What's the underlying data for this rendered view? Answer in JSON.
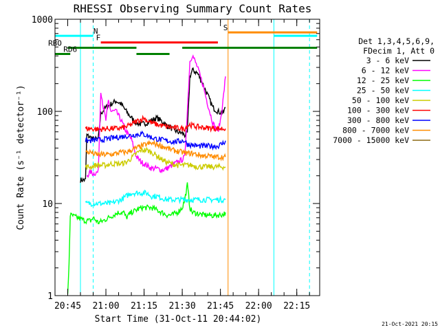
{
  "chart_data": {
    "type": "line",
    "title": "RHESSI Observing Summary Count Rates",
    "xlabel": "Start Time (31-Oct-11 20:44:02)",
    "ylabel": "Count Rate (s⁻¹ detector⁻¹)",
    "y_scale": "log",
    "ylim": [
      1,
      1000
    ],
    "xlim_minutes_after_2044": [
      -4,
      100
    ],
    "x_ticks": [
      {
        "label": "20:45",
        "t": 1
      },
      {
        "label": "21:00",
        "t": 16
      },
      {
        "label": "21:15",
        "t": 31
      },
      {
        "label": "21:30",
        "t": 46
      },
      {
        "label": "21:45",
        "t": 61
      },
      {
        "label": "22:00",
        "t": 76
      },
      {
        "label": "22:15",
        "t": 91
      }
    ],
    "y_ticks": [
      {
        "label": "1",
        "v": 1
      },
      {
        "label": "10",
        "v": 10
      },
      {
        "label": "100",
        "v": 100
      },
      {
        "label": "1000",
        "v": 1000
      }
    ],
    "legend_header": [
      "Det 1,3,4,5,6,9,",
      "FDecim 1, Att 0"
    ],
    "series": [
      {
        "name": "3 - 6 keV",
        "color": "#000000",
        "points": [
          [
            6,
            18
          ],
          [
            8,
            18
          ],
          [
            8.5,
            55
          ],
          [
            10,
            52
          ],
          [
            11,
            50
          ],
          [
            13,
            50
          ],
          [
            14,
            95
          ],
          [
            16,
            110
          ],
          [
            18,
            120
          ],
          [
            20,
            130
          ],
          [
            22,
            120
          ],
          [
            24,
            100
          ],
          [
            26,
            85
          ],
          [
            28,
            75
          ],
          [
            30,
            72
          ],
          [
            32,
            75
          ],
          [
            34,
            80
          ],
          [
            36,
            85
          ],
          [
            38,
            78
          ],
          [
            40,
            70
          ],
          [
            42,
            65
          ],
          [
            44,
            60
          ],
          [
            46,
            58
          ],
          [
            47,
            55
          ],
          [
            48,
            58
          ],
          [
            49,
            240
          ],
          [
            50,
            280
          ],
          [
            52,
            260
          ],
          [
            54,
            200
          ],
          [
            56,
            150
          ],
          [
            58,
            110
          ],
          [
            60,
            100
          ],
          [
            62,
            95
          ],
          [
            63,
            110
          ]
        ]
      },
      {
        "name": "6 - 12 keV",
        "color": "#ff00ff",
        "points": [
          [
            8.5,
            20
          ],
          [
            10,
            22
          ],
          [
            11,
            21
          ],
          [
            13,
            22
          ],
          [
            14,
            170
          ],
          [
            15,
            110
          ],
          [
            16,
            80
          ],
          [
            17,
            130
          ],
          [
            18,
            100
          ],
          [
            20,
            100
          ],
          [
            22,
            80
          ],
          [
            24,
            60
          ],
          [
            26,
            50
          ],
          [
            27,
            40
          ],
          [
            28,
            32
          ],
          [
            30,
            28
          ],
          [
            32,
            26
          ],
          [
            34,
            24
          ],
          [
            36,
            24
          ],
          [
            38,
            23
          ],
          [
            40,
            24
          ],
          [
            42,
            26
          ],
          [
            44,
            28
          ],
          [
            46,
            30
          ],
          [
            47,
            32
          ],
          [
            48,
            100
          ],
          [
            49,
            350
          ],
          [
            50,
            410
          ],
          [
            52,
            300
          ],
          [
            54,
            200
          ],
          [
            56,
            120
          ],
          [
            58,
            75
          ],
          [
            60,
            60
          ],
          [
            61,
            80
          ],
          [
            62,
            130
          ],
          [
            63,
            240
          ]
        ]
      },
      {
        "name": "12 - 25 keV",
        "color": "#00ff00",
        "points": [
          [
            1,
            1
          ],
          [
            1.5,
            2.2
          ],
          [
            2,
            7.5
          ],
          [
            8,
            6.5
          ],
          [
            10,
            6.5
          ],
          [
            11,
            7
          ],
          [
            13,
            6.2
          ],
          [
            15,
            6.5
          ],
          [
            17,
            7
          ],
          [
            19,
            7.5
          ],
          [
            21,
            8
          ],
          [
            23,
            8
          ],
          [
            24,
            7
          ],
          [
            26,
            8
          ],
          [
            28,
            8.5
          ],
          [
            30,
            9
          ],
          [
            32,
            9
          ],
          [
            34,
            9
          ],
          [
            36,
            8.5
          ],
          [
            38,
            8
          ],
          [
            40,
            7.5
          ],
          [
            42,
            7.5
          ],
          [
            44,
            8
          ],
          [
            46,
            9
          ],
          [
            47,
            11
          ],
          [
            48,
            16
          ],
          [
            49,
            9
          ],
          [
            50,
            8
          ],
          [
            52,
            7.8
          ],
          [
            54,
            7.5
          ],
          [
            56,
            7.5
          ],
          [
            58,
            7.4
          ],
          [
            60,
            7.5
          ],
          [
            62,
            7.6
          ],
          [
            63,
            8
          ]
        ]
      },
      {
        "name": "25 - 50 keV",
        "color": "#00ffff",
        "points": [
          [
            8,
            10
          ],
          [
            10,
            10
          ],
          [
            12,
            10
          ],
          [
            14,
            10
          ],
          [
            16,
            10
          ],
          [
            18,
            10
          ],
          [
            20,
            10.5
          ],
          [
            22,
            11
          ],
          [
            24,
            12
          ],
          [
            26,
            13
          ],
          [
            28,
            13
          ],
          [
            30,
            13
          ],
          [
            32,
            13
          ],
          [
            34,
            12
          ],
          [
            36,
            12
          ],
          [
            38,
            11.5
          ],
          [
            40,
            11
          ],
          [
            42,
            11
          ],
          [
            44,
            11
          ],
          [
            46,
            11
          ],
          [
            48,
            11
          ],
          [
            50,
            11
          ],
          [
            52,
            11
          ],
          [
            54,
            11
          ],
          [
            56,
            11
          ],
          [
            58,
            11
          ],
          [
            60,
            11
          ],
          [
            62,
            11
          ],
          [
            63,
            11
          ]
        ]
      },
      {
        "name": "50 - 100 keV",
        "color": "#cccc00",
        "points": [
          [
            8,
            25
          ],
          [
            10,
            25
          ],
          [
            12,
            26
          ],
          [
            14,
            26
          ],
          [
            16,
            26
          ],
          [
            18,
            27
          ],
          [
            20,
            27
          ],
          [
            22,
            27
          ],
          [
            24,
            28
          ],
          [
            26,
            31
          ],
          [
            28,
            35
          ],
          [
            30,
            38
          ],
          [
            32,
            38
          ],
          [
            34,
            36
          ],
          [
            36,
            33
          ],
          [
            38,
            30
          ],
          [
            40,
            28
          ],
          [
            42,
            27
          ],
          [
            44,
            26
          ],
          [
            46,
            26
          ],
          [
            48,
            26
          ],
          [
            50,
            26
          ],
          [
            52,
            25
          ],
          [
            54,
            25
          ],
          [
            56,
            25
          ],
          [
            58,
            25
          ],
          [
            60,
            25
          ],
          [
            62,
            25
          ],
          [
            63,
            25
          ]
        ]
      },
      {
        "name": "100 - 300 keV",
        "color": "#ff0000",
        "points": [
          [
            8,
            65
          ],
          [
            10,
            65
          ],
          [
            12,
            64
          ],
          [
            14,
            64
          ],
          [
            16,
            65
          ],
          [
            18,
            65
          ],
          [
            20,
            65
          ],
          [
            22,
            66
          ],
          [
            24,
            68
          ],
          [
            26,
            72
          ],
          [
            28,
            78
          ],
          [
            30,
            82
          ],
          [
            31,
            85
          ],
          [
            32,
            80
          ],
          [
            34,
            75
          ],
          [
            36,
            72
          ],
          [
            38,
            70
          ],
          [
            40,
            68
          ],
          [
            42,
            67
          ],
          [
            44,
            66
          ],
          [
            46,
            65
          ],
          [
            47,
            65
          ],
          [
            48,
            70
          ],
          [
            49,
            72
          ],
          [
            50,
            70
          ],
          [
            52,
            68
          ],
          [
            54,
            67
          ],
          [
            56,
            66
          ],
          [
            58,
            66
          ],
          [
            60,
            65
          ],
          [
            62,
            65
          ],
          [
            63,
            65
          ]
        ]
      },
      {
        "name": "300 - 800 keV",
        "color": "#0000ff",
        "points": [
          [
            8,
            48
          ],
          [
            10,
            48
          ],
          [
            12,
            49
          ],
          [
            14,
            49
          ],
          [
            16,
            50
          ],
          [
            18,
            51
          ],
          [
            20,
            52
          ],
          [
            22,
            53
          ],
          [
            24,
            54
          ],
          [
            26,
            55
          ],
          [
            28,
            56
          ],
          [
            30,
            57
          ],
          [
            32,
            55
          ],
          [
            34,
            52
          ],
          [
            36,
            50
          ],
          [
            38,
            49
          ],
          [
            40,
            48
          ],
          [
            42,
            47
          ],
          [
            44,
            47
          ],
          [
            46,
            48
          ],
          [
            47,
            48
          ],
          [
            48,
            44
          ],
          [
            50,
            43
          ],
          [
            52,
            42
          ],
          [
            54,
            42
          ],
          [
            56,
            42
          ],
          [
            58,
            42
          ],
          [
            60,
            42
          ],
          [
            62,
            45
          ],
          [
            63,
            48
          ]
        ]
      },
      {
        "name": "800 - 7000 keV",
        "color": "#ff8c00",
        "points": [
          [
            8,
            36
          ],
          [
            10,
            36
          ],
          [
            12,
            34
          ],
          [
            14,
            34
          ],
          [
            16,
            34
          ],
          [
            18,
            34
          ],
          [
            20,
            35
          ],
          [
            22,
            36
          ],
          [
            24,
            36
          ],
          [
            26,
            38
          ],
          [
            28,
            40
          ],
          [
            30,
            42
          ],
          [
            32,
            44
          ],
          [
            34,
            45
          ],
          [
            36,
            44
          ],
          [
            38,
            42
          ],
          [
            40,
            40
          ],
          [
            42,
            38
          ],
          [
            44,
            37
          ],
          [
            46,
            36
          ],
          [
            48,
            35
          ],
          [
            50,
            35
          ],
          [
            52,
            34
          ],
          [
            54,
            33
          ],
          [
            56,
            33
          ],
          [
            58,
            32
          ],
          [
            60,
            32
          ],
          [
            62,
            32
          ],
          [
            63,
            32
          ]
        ]
      },
      {
        "name": "7000 - 15000 keV",
        "color": "#8b6914",
        "points": []
      }
    ],
    "bars": [
      {
        "label": "N",
        "color": "#00ffff",
        "row_v": 660,
        "start": -4,
        "end": 11,
        "label_t": 12
      },
      {
        "label": "",
        "color": "#00ffff",
        "row_v": 660,
        "start": 82,
        "end": 99,
        "label_t": null
      },
      {
        "label": "S",
        "color": "#ff8c00",
        "row_v": 720,
        "start": 64,
        "end": 99,
        "label_t": 63
      },
      {
        "label": "F",
        "color": "#ff0000",
        "row_v": 560,
        "start": 14,
        "end": 60,
        "label_t": 13
      },
      {
        "label": "RBO",
        "color": "#008000",
        "row_v": 490,
        "start": 1,
        "end": 28,
        "label_t": -4
      },
      {
        "label": "",
        "color": "#008000",
        "row_v": 490,
        "start": 46,
        "end": 99,
        "label_t": null
      },
      {
        "label": "RD6",
        "color": "#008000",
        "row_v": 420,
        "start": -4,
        "end": 2,
        "label_t": 2
      },
      {
        "label": "",
        "color": "#008000",
        "row_v": 420,
        "start": 28,
        "end": 41,
        "label_t": null
      }
    ],
    "vlines": [
      {
        "t": 6,
        "color": "#00ffff",
        "dash": false
      },
      {
        "t": 11,
        "color": "#00ffff",
        "dash": true
      },
      {
        "t": 64,
        "color": "#ff8c00",
        "dash": false
      },
      {
        "t": 82,
        "color": "#00ffff",
        "dash": false
      },
      {
        "t": 96,
        "color": "#00ffff",
        "dash": true
      }
    ]
  },
  "timestamp": "21-Oct-2021 20:15"
}
